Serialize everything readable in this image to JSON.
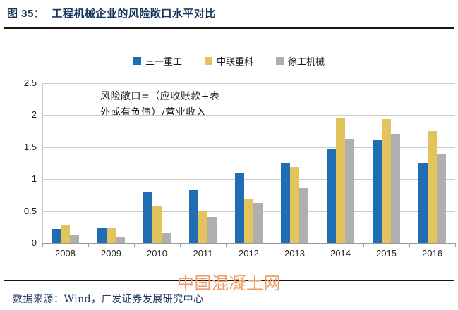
{
  "header": {
    "figure_label": "图 35：",
    "title": "工程机械企业的风险敞口水平对比"
  },
  "chart_data": {
    "type": "bar",
    "title": "工程机械企业的风险敞口水平对比",
    "categories": [
      "2008",
      "2009",
      "2010",
      "2011",
      "2012",
      "2013",
      "2014",
      "2015",
      "2016"
    ],
    "series": [
      {
        "name": "三一重工",
        "color": "#1F6DB2",
        "values": [
          0.22,
          0.23,
          0.8,
          0.83,
          1.1,
          1.25,
          1.47,
          1.6,
          1.25
        ]
      },
      {
        "name": "中联重科",
        "color": "#E2C35C",
        "values": [
          0.27,
          0.24,
          0.57,
          0.51,
          0.69,
          1.19,
          1.94,
          1.93,
          1.75
        ]
      },
      {
        "name": "徐工机械",
        "color": "#B0AFAF",
        "values": [
          0.12,
          0.09,
          0.16,
          0.41,
          0.63,
          0.86,
          1.63,
          1.7,
          1.4
        ]
      }
    ],
    "ylim": [
      0,
      2.5
    ],
    "yticks": [
      0,
      0.5,
      1,
      1.5,
      2,
      2.5
    ],
    "ytick_labels": [
      "0",
      "0.5",
      "1",
      "1.5",
      "2",
      "2.5"
    ],
    "grid": true,
    "legend_position": "top-center",
    "annotation_lines": [
      "风险敞口=（应收账款+表",
      "外或有负债）/营业收入"
    ]
  },
  "watermark": {
    "text": "中国混凝土网",
    "color": "#EE9C63"
  },
  "footer": {
    "source_text": "数据来源：Wind，广发证券发展研究中心"
  }
}
